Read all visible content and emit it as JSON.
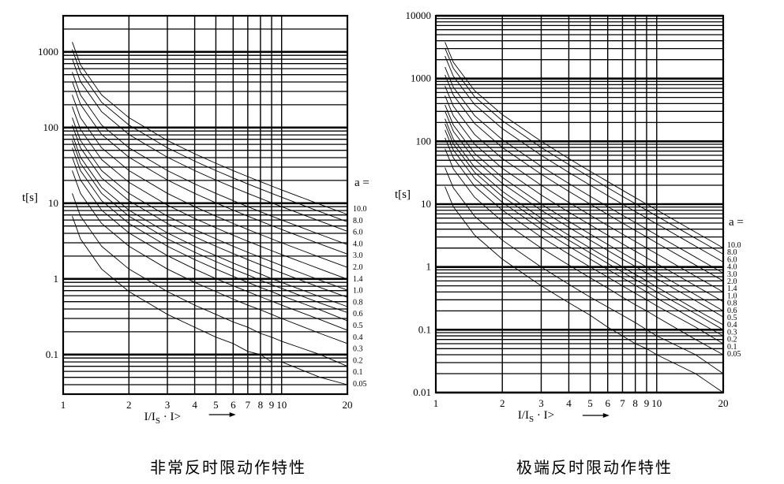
{
  "chart_data": [
    {
      "type": "line",
      "title": "非常反时限动作特性",
      "ylabel": "t[s]",
      "xlabel": "I/I_S · I>",
      "legend_title": "a =",
      "x_scale": "log",
      "y_scale": "log",
      "xlim": [
        1,
        20
      ],
      "ylim": [
        0.03,
        3000
      ],
      "x_ticks": [
        "1",
        "2",
        "3",
        "4",
        "5",
        "6",
        "7",
        "8",
        "9",
        "10",
        "20"
      ],
      "y_ticks": [
        "0.1",
        "1",
        "10",
        "100",
        "1000"
      ],
      "curve_formula": "t = 13.5 * a / (I/I_S - 1)",
      "x": [
        1.1,
        1.2,
        1.5,
        2,
        3,
        4,
        5,
        6,
        7,
        8,
        9,
        10,
        15,
        20
      ],
      "series": [
        {
          "name": "10.0",
          "values": [
            1350,
            675,
            270,
            135,
            67.5,
            45,
            33.75,
            27,
            22.5,
            19.29,
            16.88,
            15,
            9.64,
            7.11
          ]
        },
        {
          "name": "8.0",
          "values": [
            1080,
            540,
            216,
            108,
            54,
            36,
            27,
            21.6,
            18,
            15.43,
            13.5,
            12,
            7.71,
            5.68
          ]
        },
        {
          "name": "6.0",
          "values": [
            810,
            405,
            162,
            81,
            40.5,
            27,
            20.25,
            16.2,
            13.5,
            11.57,
            10.13,
            9,
            5.79,
            4.26
          ]
        },
        {
          "name": "4.0",
          "values": [
            540,
            270,
            108,
            54,
            27,
            18,
            13.5,
            10.8,
            9,
            7.71,
            6.75,
            6,
            3.86,
            2.84
          ]
        },
        {
          "name": "3.0",
          "values": [
            405,
            202.5,
            81,
            40.5,
            20.25,
            13.5,
            10.13,
            8.1,
            6.75,
            5.79,
            5.06,
            4.5,
            2.89,
            2.13
          ]
        },
        {
          "name": "2.0",
          "values": [
            270,
            135,
            54,
            27,
            13.5,
            9,
            6.75,
            5.4,
            4.5,
            3.86,
            3.38,
            3,
            1.93,
            1.42
          ]
        },
        {
          "name": "1.4",
          "values": [
            189,
            94.5,
            37.8,
            18.9,
            9.45,
            6.3,
            4.73,
            3.78,
            3.15,
            2.7,
            2.36,
            2.1,
            1.35,
            0.99
          ]
        },
        {
          "name": "1.0",
          "values": [
            135,
            67.5,
            27,
            13.5,
            6.75,
            4.5,
            3.38,
            2.7,
            2.25,
            1.93,
            1.69,
            1.5,
            0.96,
            0.71
          ]
        },
        {
          "name": "0.8",
          "values": [
            108,
            54,
            21.6,
            10.8,
            5.4,
            3.6,
            2.7,
            2.16,
            1.8,
            1.54,
            1.35,
            1.2,
            0.77,
            0.57
          ]
        },
        {
          "name": "0.6",
          "values": [
            81,
            40.5,
            16.2,
            8.1,
            4.05,
            2.7,
            2.03,
            1.62,
            1.35,
            1.16,
            1.01,
            0.9,
            0.58,
            0.43
          ]
        },
        {
          "name": "0.5",
          "values": [
            67.5,
            33.75,
            13.5,
            6.75,
            3.38,
            2.25,
            1.69,
            1.35,
            1.13,
            0.96,
            0.84,
            0.75,
            0.48,
            0.36
          ]
        },
        {
          "name": "0.4",
          "values": [
            54,
            27,
            10.8,
            5.4,
            2.7,
            1.8,
            1.35,
            1.08,
            0.9,
            0.77,
            0.68,
            0.6,
            0.39,
            0.28
          ]
        },
        {
          "name": "0.3",
          "values": [
            40.5,
            20.25,
            8.1,
            4.05,
            2.03,
            1.35,
            1.01,
            0.81,
            0.68,
            0.58,
            0.51,
            0.45,
            0.29,
            0.21
          ]
        },
        {
          "name": "0.2",
          "values": [
            27,
            13.5,
            5.4,
            2.7,
            1.35,
            0.9,
            0.68,
            0.54,
            0.45,
            0.39,
            0.34,
            0.3,
            0.19,
            0.14
          ]
        },
        {
          "name": "0.1",
          "values": [
            13.5,
            6.75,
            2.7,
            1.35,
            0.68,
            0.45,
            0.34,
            0.27,
            0.23,
            0.19,
            0.17,
            0.15,
            0.1,
            0.07
          ]
        },
        {
          "name": "0.05",
          "values": [
            6.75,
            3.38,
            1.35,
            0.68,
            0.34,
            0.23,
            0.17,
            0.14,
            0.11,
            0.1,
            0.08,
            0.08,
            0.05,
            0.04
          ]
        }
      ]
    },
    {
      "type": "line",
      "title": "极端反时限动作特性",
      "ylabel": "t[s]",
      "xlabel": "I/I_S · I>",
      "legend_title": "a =",
      "x_scale": "log",
      "y_scale": "log",
      "xlim": [
        1,
        20
      ],
      "ylim": [
        0.01,
        10000
      ],
      "x_ticks": [
        "1",
        "2",
        "3",
        "4",
        "5",
        "6",
        "7",
        "8",
        "9",
        "10",
        "20"
      ],
      "y_ticks": [
        "0.01",
        "0.1",
        "1",
        "10",
        "100",
        "1000",
        "10000"
      ],
      "curve_formula": "t = 80 * a / ((I/I_S)^2 - 1)",
      "x": [
        1.1,
        1.2,
        1.5,
        2,
        3,
        4,
        5,
        6,
        7,
        8,
        9,
        10,
        15,
        20
      ],
      "series": [
        {
          "name": "10.0",
          "values": [
            3810,
            1818,
            640,
            266.7,
            100,
            53.3,
            33.3,
            22.9,
            16.7,
            12.7,
            10,
            8.08,
            3.57,
            2.01
          ]
        },
        {
          "name": "8.0",
          "values": [
            3048,
            1455,
            512,
            213.3,
            80,
            42.7,
            26.7,
            18.3,
            13.3,
            10.2,
            8,
            6.46,
            2.86,
            1.6
          ]
        },
        {
          "name": "6.0",
          "values": [
            2286,
            1091,
            384,
            160,
            60,
            32,
            20,
            13.7,
            10,
            7.62,
            6,
            4.85,
            2.14,
            1.2
          ]
        },
        {
          "name": "4.0",
          "values": [
            1524,
            727,
            256,
            106.7,
            40,
            21.3,
            13.3,
            9.14,
            6.67,
            5.08,
            4,
            3.23,
            1.43,
            0.8
          ]
        },
        {
          "name": "3.0",
          "values": [
            1143,
            545,
            192,
            80,
            30,
            16,
            10,
            6.86,
            5,
            3.81,
            3,
            2.42,
            1.07,
            0.6
          ]
        },
        {
          "name": "2.0",
          "values": [
            762,
            364,
            128,
            53.3,
            20,
            10.7,
            6.67,
            4.57,
            3.33,
            2.54,
            2,
            1.62,
            0.71,
            0.4
          ]
        },
        {
          "name": "1.4",
          "values": [
            533,
            255,
            89.6,
            37.3,
            14,
            7.47,
            4.67,
            3.2,
            2.33,
            1.78,
            1.4,
            1.13,
            0.5,
            0.28
          ]
        },
        {
          "name": "1.0",
          "values": [
            381,
            182,
            64,
            26.7,
            10,
            5.33,
            3.33,
            2.29,
            1.67,
            1.27,
            1,
            0.81,
            0.36,
            0.2
          ]
        },
        {
          "name": "0.8",
          "values": [
            305,
            145,
            51.2,
            21.3,
            8,
            4.27,
            2.67,
            1.83,
            1.33,
            1.02,
            0.8,
            0.65,
            0.29,
            0.16
          ]
        },
        {
          "name": "0.6",
          "values": [
            229,
            109,
            38.4,
            16,
            6,
            3.2,
            2,
            1.37,
            1,
            0.76,
            0.6,
            0.48,
            0.21,
            0.12
          ]
        },
        {
          "name": "0.5",
          "values": [
            190,
            91,
            32,
            13.3,
            5,
            2.67,
            1.67,
            1.14,
            0.83,
            0.63,
            0.5,
            0.4,
            0.18,
            0.1
          ]
        },
        {
          "name": "0.4",
          "values": [
            152,
            72.7,
            25.6,
            10.7,
            4,
            2.13,
            1.33,
            0.91,
            0.67,
            0.51,
            0.4,
            0.32,
            0.14,
            0.08
          ]
        },
        {
          "name": "0.3",
          "values": [
            114,
            54.5,
            19.2,
            8,
            3,
            1.6,
            1,
            0.69,
            0.5,
            0.38,
            0.3,
            0.24,
            0.11,
            0.06
          ]
        },
        {
          "name": "0.2",
          "values": [
            76.2,
            36.4,
            12.8,
            5.33,
            2,
            1.07,
            0.67,
            0.46,
            0.33,
            0.25,
            0.2,
            0.16,
            0.07,
            0.04
          ]
        },
        {
          "name": "0.1",
          "values": [
            38.1,
            18.2,
            6.4,
            2.67,
            1,
            0.53,
            0.33,
            0.23,
            0.17,
            0.13,
            0.1,
            0.08,
            0.04,
            0.02
          ]
        },
        {
          "name": "0.05",
          "values": [
            19,
            9.1,
            3.2,
            1.33,
            0.5,
            0.27,
            0.17,
            0.11,
            0.08,
            0.06,
            0.05,
            0.04,
            0.02,
            0.01
          ]
        }
      ]
    }
  ],
  "captions": {
    "left": "非常反时限动作特性",
    "right": "极端反时限动作特性"
  },
  "axis_text": {
    "ylabel": "t[s]",
    "x_I": "I/I",
    "x_sub": "S",
    "x_tail": " · I>",
    "a_eq": "a ="
  }
}
